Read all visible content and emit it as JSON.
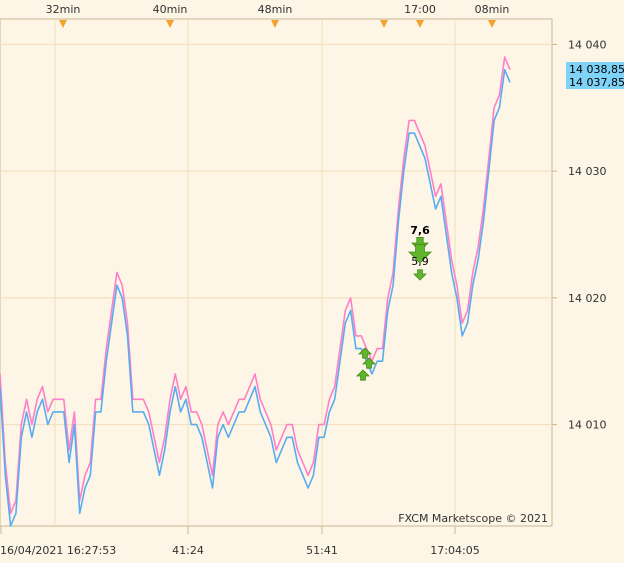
{
  "chart_data": {
    "type": "line",
    "title": "",
    "xlabel": "",
    "ylabel": "",
    "ylim": [
      14002,
      14042
    ],
    "y_ticks": [
      14010,
      14020,
      14030,
      14040
    ],
    "y_tick_labels": [
      "14 010",
      "14 020",
      "14 030",
      "14 040"
    ],
    "top_time_markers": [
      "32min",
      "40min",
      "48min",
      "17:00",
      "08min"
    ],
    "bottom_time_labels": [
      "16/04/2021 16:27:53",
      "41:24",
      "51:41",
      "17:04:05"
    ],
    "price_tags": [
      "14 038,85",
      "14 037,85"
    ],
    "trade_labels": [
      "7,6",
      "5,9"
    ],
    "watermark": "FXCM Marketscope © 2021",
    "series": [
      {
        "name": "",
        "color": "#ff7fc8",
        "values": [
          14014,
          14007,
          14003,
          14004,
          14010,
          14012,
          14010,
          14012,
          14013,
          14011,
          14012,
          14012,
          14012,
          14008,
          14011,
          14004,
          14006,
          14007,
          14012,
          14012,
          14016,
          14019,
          14022,
          14021,
          14018,
          14012,
          14012,
          14012,
          14011,
          14009,
          14007,
          14009,
          14012,
          14014,
          14012,
          14013,
          14011,
          14011,
          14010,
          14008,
          14006,
          14010,
          14011,
          14010,
          14011,
          14012,
          14012,
          14013,
          14014,
          14012,
          14011,
          14010,
          14008,
          14009,
          14010,
          14010,
          14008,
          14007,
          14006,
          14007,
          14010,
          14010,
          14012,
          14013,
          14016,
          14019,
          14020,
          14017,
          14017,
          14016,
          14015,
          14016,
          14016,
          14020,
          14022,
          14027,
          14031,
          14034,
          14034,
          14033,
          14032,
          14030,
          14028,
          14029,
          14026,
          14023,
          14021,
          14018,
          14019,
          14022,
          14024,
          14027,
          14031,
          14035,
          14036,
          14039,
          14038
        ]
      },
      {
        "name": "",
        "color": "#5aacf0",
        "values": [
          14013,
          14006,
          14002,
          14003,
          14009,
          14011,
          14009,
          14011,
          14012,
          14010,
          14011,
          14011,
          14011,
          14007,
          14010,
          14003,
          14005,
          14006,
          14011,
          14011,
          14015,
          14018,
          14021,
          14020,
          14017,
          14011,
          14011,
          14011,
          14010,
          14008,
          14006,
          14008,
          14011,
          14013,
          14011,
          14012,
          14010,
          14010,
          14009,
          14007,
          14005,
          14009,
          14010,
          14009,
          14010,
          14011,
          14011,
          14012,
          14013,
          14011,
          14010,
          14009,
          14007,
          14008,
          14009,
          14009,
          14007,
          14006,
          14005,
          14006,
          14009,
          14009,
          14011,
          14012,
          14015,
          14018,
          14019,
          14016,
          14016,
          14015,
          14014,
          14015,
          14015,
          14019,
          14021,
          14026,
          14030,
          14033,
          14033,
          14032,
          14031,
          14029,
          14027,
          14028,
          14025,
          14022,
          14020,
          14017,
          14018,
          14021,
          14023,
          14026,
          14030,
          14034,
          14035,
          14038,
          14037
        ]
      }
    ],
    "grid": true,
    "colors": {
      "background": "#fdf6e6",
      "grid": "#f0ddb8",
      "axis": "#c8b694",
      "tag": "#7fd3f7",
      "marker": "#f2a22f",
      "arrow": "#5fb62a"
    }
  }
}
